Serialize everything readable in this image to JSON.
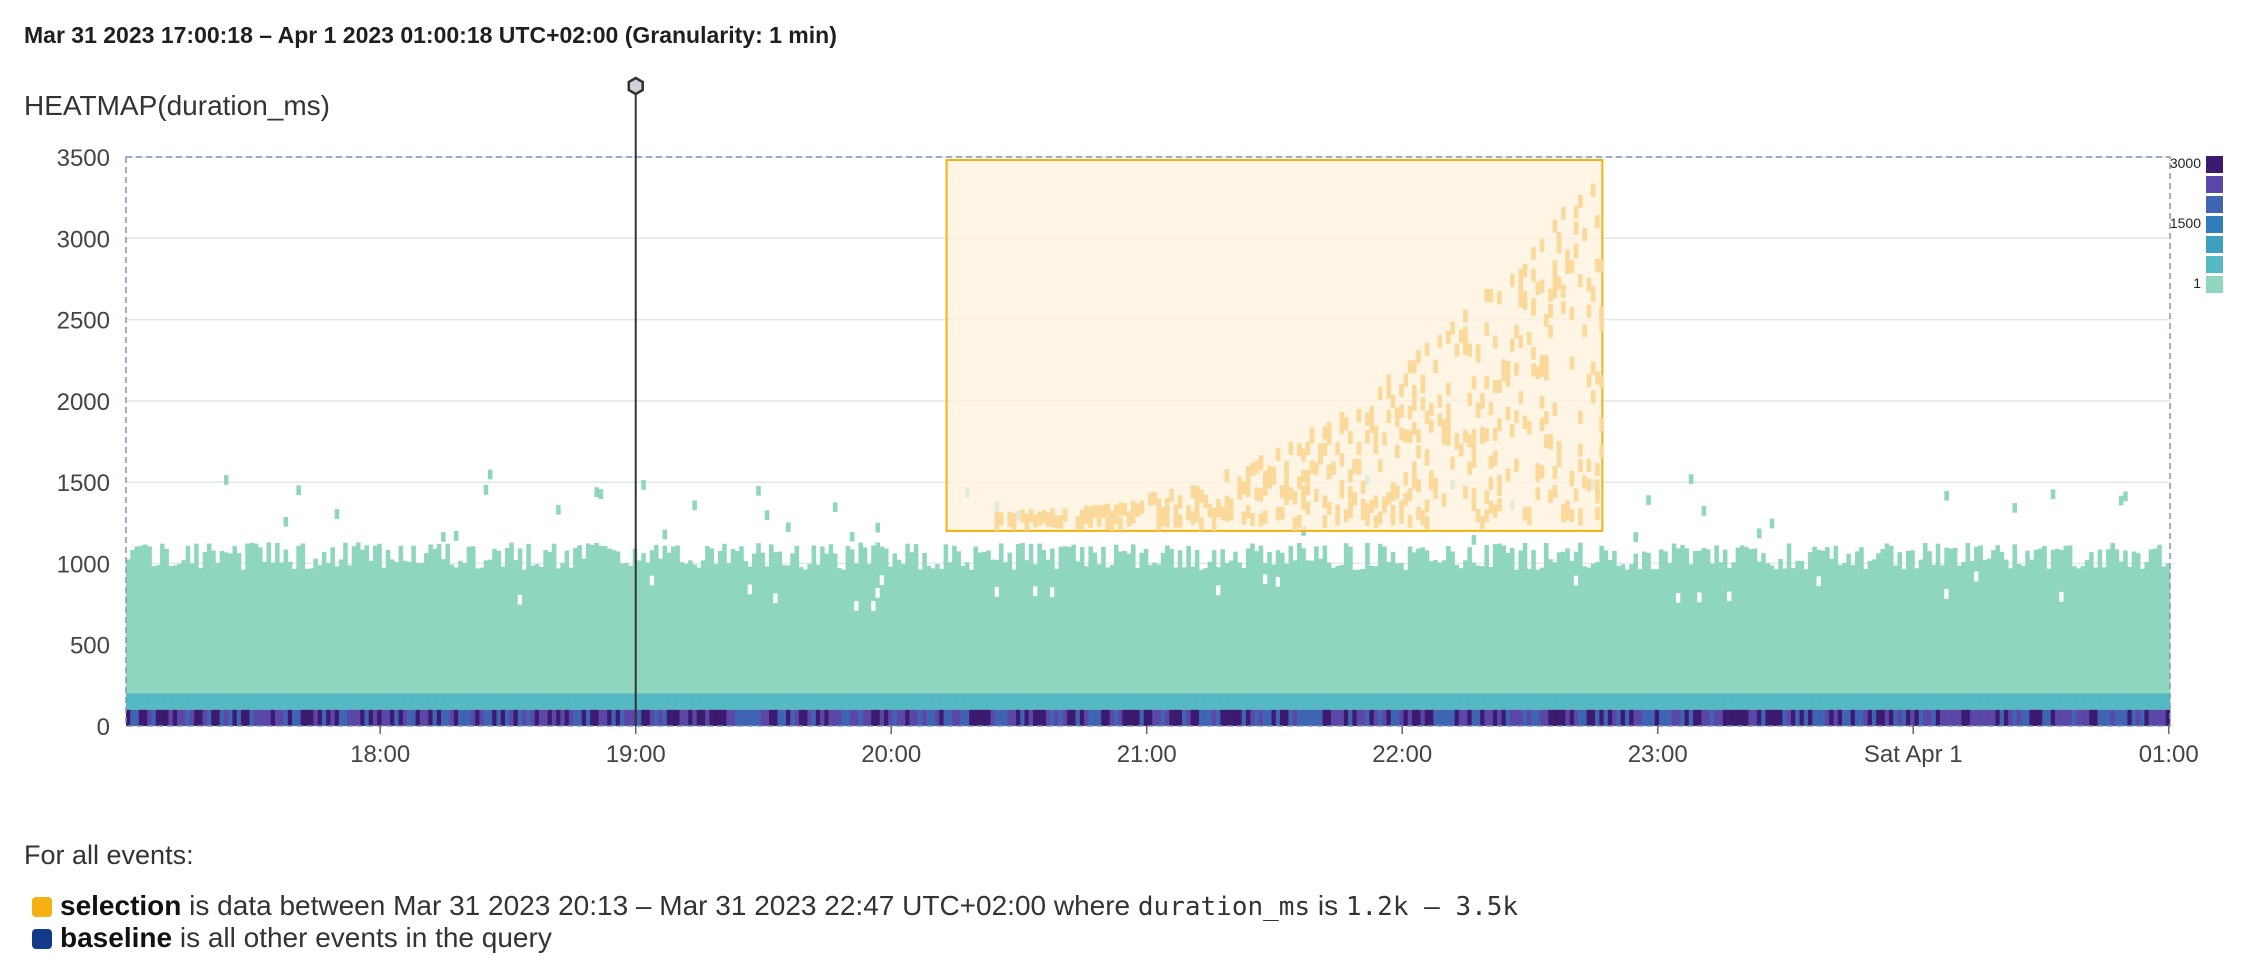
{
  "header": {
    "time_range": "Mar 31 2023 17:00:18 – Apr 1 2023 01:00:18 UTC+02:00 (Granularity: 1 min)"
  },
  "colors": {
    "selection": "#f5b111",
    "selection_fill": "#fdf1dc",
    "baseline": "#143a8a",
    "scale": [
      "#3b1a70",
      "#5b47a8",
      "#3f64b4",
      "#2f7eb9",
      "#3f9fbe",
      "#55b9c4",
      "#8fd6bf"
    ]
  },
  "chart_data": {
    "type": "heatmap",
    "title": "HEATMAP(duration_ms)",
    "x_start": "Mar 31 2023 17:00:18",
    "x_end": "Apr 1 2023 01:00:18",
    "x_ticks": [
      "18:00",
      "19:00",
      "20:00",
      "21:00",
      "22:00",
      "23:00",
      "Sat Apr 1",
      "01:00"
    ],
    "x_tick_hours": [
      18,
      19,
      20,
      21,
      22,
      23,
      24,
      25
    ],
    "ylim": [
      0,
      3500
    ],
    "y_ticks": [
      0,
      500,
      1000,
      1500,
      2000,
      2500,
      3000,
      3500
    ],
    "grid": true,
    "color_scale_labels": [
      "3000",
      "1500",
      "1"
    ],
    "marker_time": "19:00",
    "selection": {
      "start": "Mar 31 2023 20:13",
      "end": "Mar 31 2023 22:47",
      "y_min": 1200,
      "y_max": 3500
    },
    "body_approx": {
      "dense_low_band_ms": [
        0,
        100
      ],
      "mid_band_ms": [
        100,
        200
      ],
      "typical_max_ms": [
        950,
        1100
      ],
      "tail_peak_ms": 3450,
      "tail_peak_time": "22:47"
    }
  },
  "footer": {
    "intro": "For all events:",
    "selection_word": "selection",
    "selection_text1": " is data between Mar 31 2023 20:13 – Mar 31 2023 22:47 UTC+02:00 where ",
    "selection_field": "duration_ms",
    "selection_text2": " is ",
    "selection_range": "1.2k – 3.5k",
    "baseline_word": "baseline",
    "baseline_text": " is all other events in the query"
  }
}
